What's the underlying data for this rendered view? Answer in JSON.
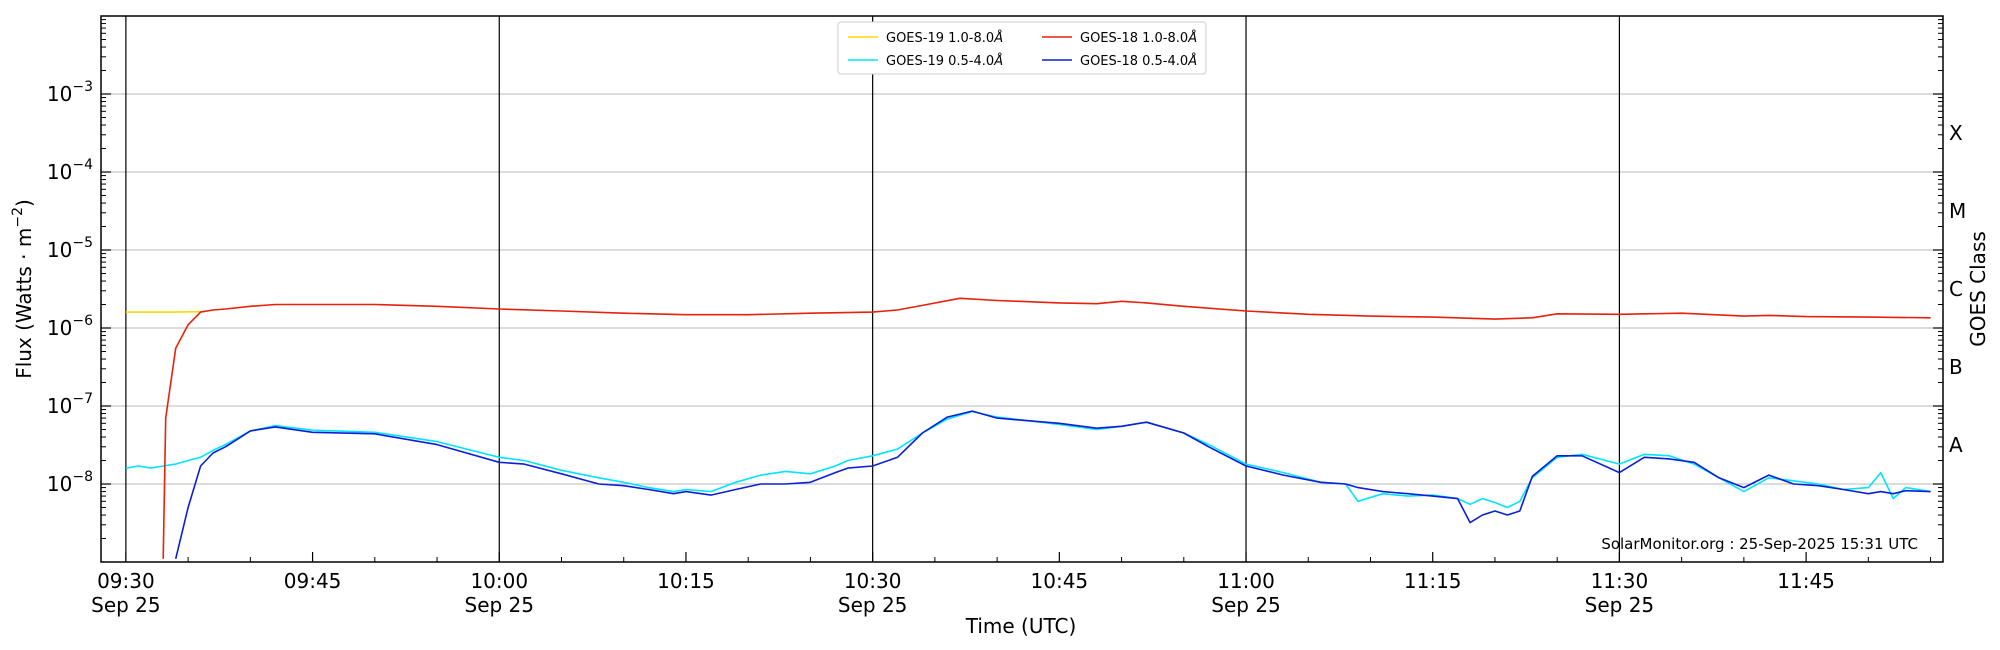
{
  "chart_data": {
    "type": "line",
    "title": "",
    "xlabel": "Time (UTC)",
    "ylabel": "Flux (Watts · m",
    "ylabel_sup": "−2",
    "ylabel_close": ")",
    "y_scale": "log",
    "ylim": [
      1e-09,
      0.01
    ],
    "y_ticks": [
      {
        "value": 1e-08,
        "base": "10",
        "exp": "−8"
      },
      {
        "value": 1e-07,
        "base": "10",
        "exp": "−7"
      },
      {
        "value": 1e-06,
        "base": "10",
        "exp": "−6"
      },
      {
        "value": 1e-05,
        "base": "10",
        "exp": "−5"
      },
      {
        "value": 0.0001,
        "base": "10",
        "exp": "−4"
      },
      {
        "value": 0.001,
        "base": "10",
        "exp": "−3"
      }
    ],
    "xlim": [
      "2025-09-25 09:28",
      "2025-09-25 11:56"
    ],
    "x_ticks": [
      {
        "time": "09:30",
        "line1": "09:30",
        "line2": "Sep 25",
        "vline": true
      },
      {
        "time": "09:45",
        "line1": "09:45",
        "line2": "",
        "vline": false
      },
      {
        "time": "10:00",
        "line1": "10:00",
        "line2": "Sep 25",
        "vline": true
      },
      {
        "time": "10:15",
        "line1": "10:15",
        "line2": "",
        "vline": false
      },
      {
        "time": "10:30",
        "line1": "10:30",
        "line2": "Sep 25",
        "vline": true
      },
      {
        "time": "10:45",
        "line1": "10:45",
        "line2": "",
        "vline": false
      },
      {
        "time": "11:00",
        "line1": "11:00",
        "line2": "Sep 25",
        "vline": true
      },
      {
        "time": "11:15",
        "line1": "11:15",
        "line2": "",
        "vline": false
      },
      {
        "time": "11:30",
        "line1": "11:30",
        "line2": "Sep 25",
        "vline": true
      },
      {
        "time": "11:45",
        "line1": "11:45",
        "line2": "",
        "vline": false
      }
    ],
    "right_axis": {
      "label": "GOES Class",
      "classes": [
        {
          "label": "A",
          "value": 3.16e-08
        },
        {
          "label": "B",
          "value": 3.16e-07
        },
        {
          "label": "C",
          "value": 3.16e-06
        },
        {
          "label": "M",
          "value": 3.16e-05
        },
        {
          "label": "X",
          "value": 0.000316
        }
      ]
    },
    "grid": "horizontal at decades, vertical at day-marker ticks",
    "legend_placement": "top-center",
    "credit": "SolarMonitor.org : 25-Sep-2025 15:31 UTC",
    "series": [
      {
        "name": "GOES-19 1.0-8.0",
        "color": "#FFD700",
        "x": [
          "09:30",
          "09:32",
          "09:34",
          "09:36"
        ],
        "y": [
          1.6e-06,
          1.6e-06,
          1.6e-06,
          1.62e-06
        ]
      },
      {
        "name": "GOES-18 1.0-8.0",
        "color": "#E8210A",
        "x": [
          "09:33",
          "09:33.2",
          "09:34",
          "09:35",
          "09:36",
          "09:37",
          "09:38",
          "09:40",
          "09:42",
          "09:45",
          "09:50",
          "09:55",
          "10:00",
          "10:05",
          "10:10",
          "10:15",
          "10:20",
          "10:25",
          "10:30",
          "10:32",
          "10:34",
          "10:37",
          "10:40",
          "10:45",
          "10:48",
          "10:50",
          "10:52",
          "10:55",
          "11:00",
          "11:05",
          "11:10",
          "11:15",
          "11:20",
          "11:23",
          "11:25",
          "11:30",
          "11:35",
          "11:40",
          "11:42",
          "11:45",
          "11:50",
          "11:55"
        ],
        "y": [
          1.1e-09,
          7e-08,
          5.5e-07,
          1.1e-06,
          1.6e-06,
          1.7e-06,
          1.75e-06,
          1.9e-06,
          2e-06,
          2e-06,
          2e-06,
          1.9e-06,
          1.75e-06,
          1.65e-06,
          1.55e-06,
          1.48e-06,
          1.48e-06,
          1.55e-06,
          1.6e-06,
          1.7e-06,
          1.95e-06,
          2.4e-06,
          2.25e-06,
          2.1e-06,
          2.05e-06,
          2.2e-06,
          2.1e-06,
          1.9e-06,
          1.65e-06,
          1.5e-06,
          1.42e-06,
          1.38e-06,
          1.3e-06,
          1.35e-06,
          1.52e-06,
          1.5e-06,
          1.55e-06,
          1.42e-06,
          1.45e-06,
          1.4e-06,
          1.38e-06,
          1.35e-06
        ]
      },
      {
        "name": "GOES-19 0.5-4.0",
        "color": "#00E5FF",
        "x": [
          "09:30",
          "09:31",
          "09:32",
          "09:33",
          "09:34",
          "09:35",
          "09:36",
          "09:37",
          "09:38",
          "09:40",
          "09:42",
          "09:45",
          "09:50",
          "09:55",
          "10:00",
          "10:02",
          "10:05",
          "10:08",
          "10:10",
          "10:12",
          "10:14",
          "10:15",
          "10:17",
          "10:19",
          "10:21",
          "10:23",
          "10:25",
          "10:27",
          "10:28",
          "10:30",
          "10:32",
          "10:34",
          "10:36",
          "10:38",
          "10:40",
          "10:45",
          "10:48",
          "10:50",
          "10:52",
          "10:55",
          "10:57",
          "11:00",
          "11:03",
          "11:06",
          "11:08",
          "11:09",
          "11:11",
          "11:13",
          "11:15",
          "11:17",
          "11:18",
          "11:19",
          "11:20",
          "11:21",
          "11:22",
          "11:23",
          "11:25",
          "11:27",
          "11:30",
          "11:32",
          "11:34",
          "11:36",
          "11:38",
          "11:40",
          "11:42",
          "11:44",
          "11:46",
          "11:48",
          "11:50",
          "11:51",
          "11:52",
          "11:53",
          "11:55"
        ],
        "y": [
          1.6e-08,
          1.7e-08,
          1.6e-08,
          1.7e-08,
          1.8e-08,
          2e-08,
          2.2e-08,
          2.7e-08,
          3.2e-08,
          4.8e-08,
          5.6e-08,
          4.9e-08,
          4.6e-08,
          3.5e-08,
          2.2e-08,
          2e-08,
          1.5e-08,
          1.2e-08,
          1.05e-08,
          9e-09,
          8e-09,
          8.5e-09,
          8e-09,
          1.05e-08,
          1.3e-08,
          1.45e-08,
          1.35e-08,
          1.7e-08,
          2e-08,
          2.3e-08,
          2.8e-08,
          4.5e-08,
          6.8e-08,
          8.5e-08,
          7.2e-08,
          5.8e-08,
          5e-08,
          5.5e-08,
          6.2e-08,
          4.5e-08,
          3.2e-08,
          1.8e-08,
          1.4e-08,
          1.05e-08,
          1e-08,
          6e-09,
          7.5e-09,
          7e-09,
          7.2e-09,
          6.5e-09,
          5.5e-09,
          6.5e-09,
          5.8e-09,
          5e-09,
          6e-09,
          1.2e-08,
          2.2e-08,
          2.4e-08,
          1.8e-08,
          2.4e-08,
          2.3e-08,
          1.8e-08,
          1.2e-08,
          8e-09,
          1.2e-08,
          1.1e-08,
          1e-08,
          8.5e-09,
          9e-09,
          1.4e-08,
          6.5e-09,
          9e-09,
          8e-09
        ]
      },
      {
        "name": "GOES-18 0.5-4.0",
        "color": "#0B1FD6",
        "x": [
          "09:34",
          "09:35",
          "09:36",
          "09:37",
          "09:38",
          "09:40",
          "09:42",
          "09:45",
          "09:50",
          "09:55",
          "10:00",
          "10:02",
          "10:05",
          "10:08",
          "10:10",
          "10:12",
          "10:14",
          "10:15",
          "10:17",
          "10:19",
          "10:21",
          "10:23",
          "10:25",
          "10:27",
          "10:28",
          "10:30",
          "10:32",
          "10:34",
          "10:36",
          "10:38",
          "10:40",
          "10:45",
          "10:48",
          "10:50",
          "10:52",
          "10:55",
          "10:57",
          "11:00",
          "11:03",
          "11:06",
          "11:08",
          "11:09",
          "11:11",
          "11:13",
          "11:15",
          "11:17",
          "11:18",
          "11:19",
          "11:20",
          "11:21",
          "11:22",
          "11:23",
          "11:25",
          "11:27",
          "11:30",
          "11:32",
          "11:34",
          "11:36",
          "11:38",
          "11:40",
          "11:42",
          "11:44",
          "11:46",
          "11:48",
          "11:50",
          "11:51",
          "11:52",
          "11:53",
          "11:55"
        ],
        "y": [
          1.1e-09,
          5e-09,
          1.7e-08,
          2.5e-08,
          3e-08,
          4.8e-08,
          5.4e-08,
          4.6e-08,
          4.4e-08,
          3.2e-08,
          1.9e-08,
          1.8e-08,
          1.35e-08,
          1e-08,
          9.5e-09,
          8.5e-09,
          7.5e-09,
          8e-09,
          7.2e-09,
          8.5e-09,
          1e-08,
          1e-08,
          1.05e-08,
          1.4e-08,
          1.6e-08,
          1.7e-08,
          2.2e-08,
          4.5e-08,
          7.2e-08,
          8.6e-08,
          7e-08,
          6e-08,
          5.2e-08,
          5.5e-08,
          6.2e-08,
          4.5e-08,
          3e-08,
          1.7e-08,
          1.3e-08,
          1.05e-08,
          1e-08,
          9e-09,
          8e-09,
          7.5e-09,
          7e-09,
          6.5e-09,
          3.2e-09,
          4e-09,
          4.5e-09,
          4e-09,
          4.5e-09,
          1.25e-08,
          2.3e-08,
          2.3e-08,
          1.4e-08,
          2.2e-08,
          2.1e-08,
          1.9e-08,
          1.2e-08,
          9e-09,
          1.3e-08,
          1e-08,
          9.5e-09,
          8.5e-09,
          7.5e-09,
          8e-09,
          7.5e-09,
          8.2e-09,
          8e-09
        ]
      }
    ]
  },
  "legend": {
    "entries": [
      {
        "label": "GOES-19 1.0-8.0",
        "unit": "Å",
        "color": "#FFD700"
      },
      {
        "label": "GOES-19 0.5-4.0",
        "unit": "Å",
        "color": "#00E5FF"
      },
      {
        "label": "GOES-18 1.0-8.0",
        "unit": "Å",
        "color": "#E8210A"
      },
      {
        "label": "GOES-18 0.5-4.0",
        "unit": "Å",
        "color": "#0B1FD6"
      }
    ]
  }
}
